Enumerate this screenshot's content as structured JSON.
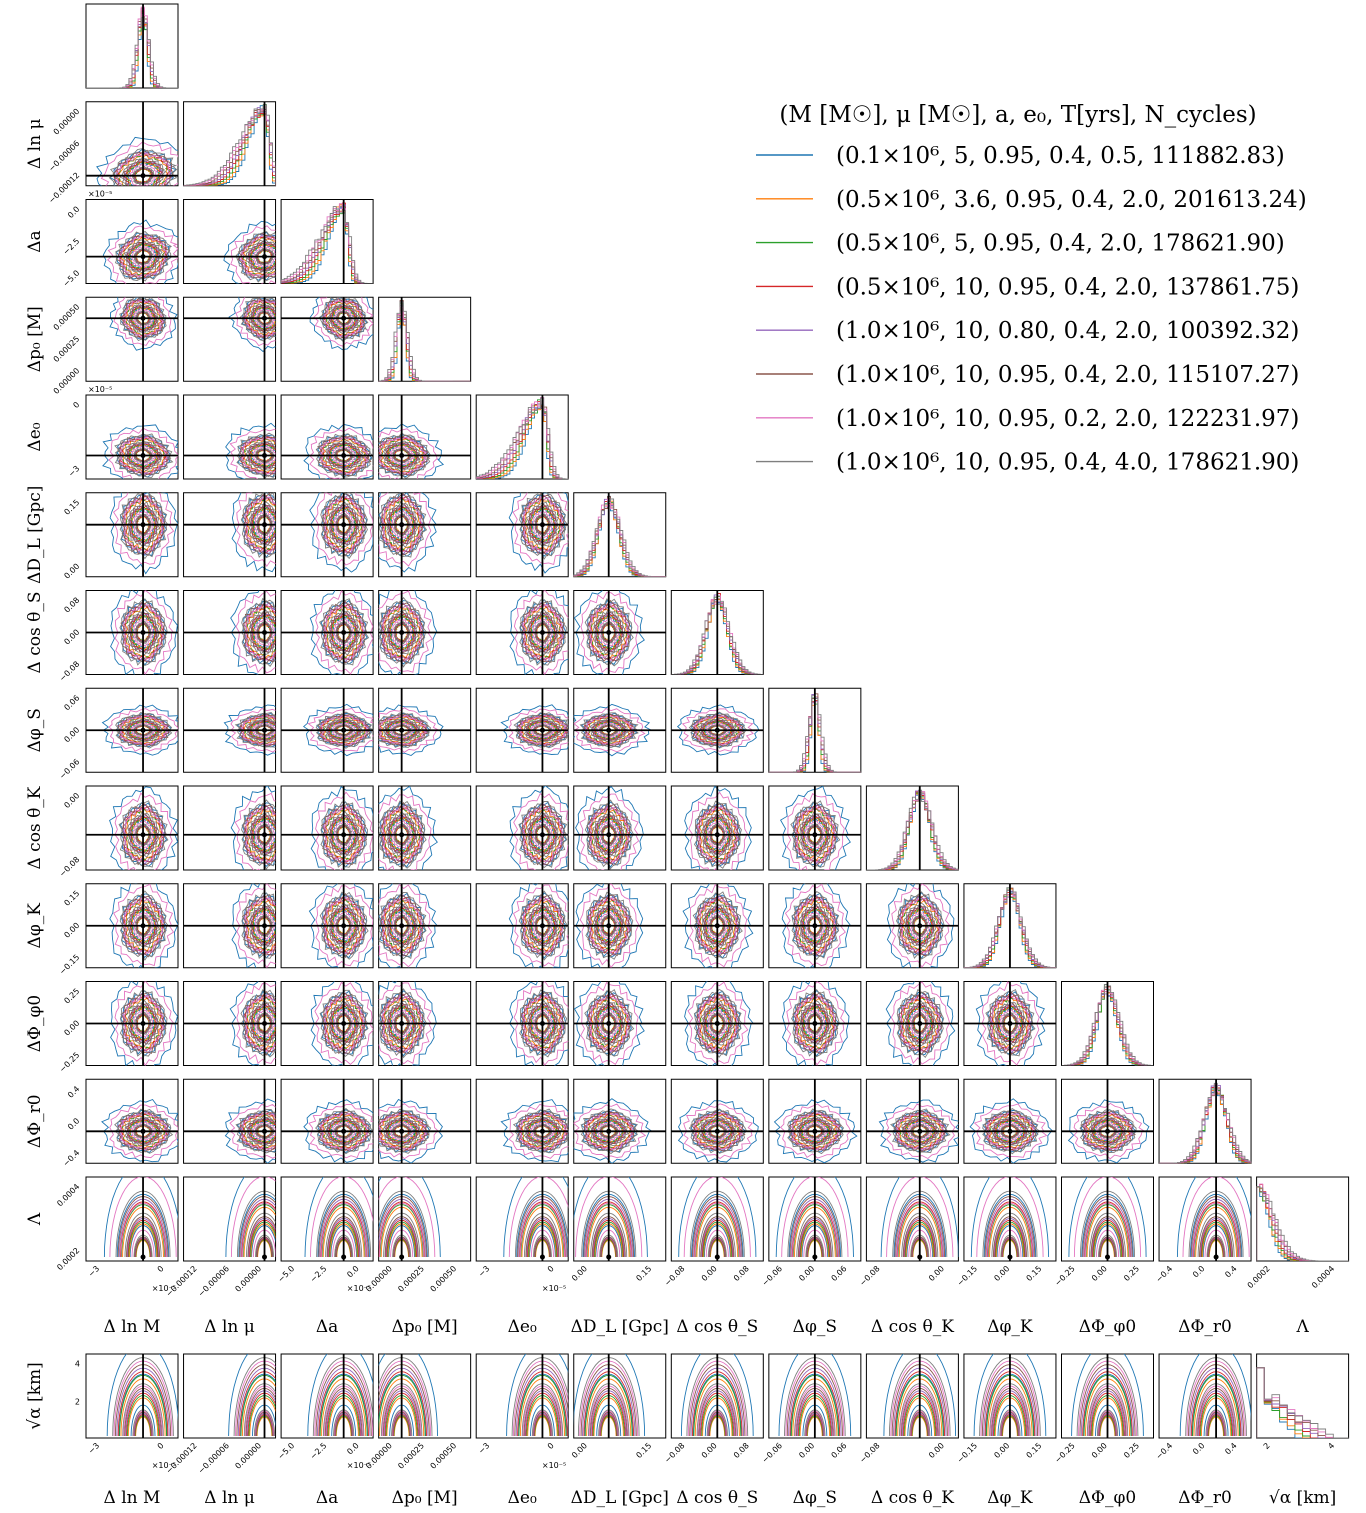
{
  "chart_data": {
    "type": "scatter",
    "subtype": "corner-plot",
    "parameters": [
      {
        "label": "Δ ln M",
        "ticks": [
          "−3",
          "0"
        ],
        "offset": "×10⁻⁵",
        "range": [
          -4,
          1
        ]
      },
      {
        "label": "Δ ln μ",
        "ticks": [
          "−0.00012",
          "−0.00006",
          "0.00000"
        ],
        "range": [
          -0.00015,
          1e-05
        ]
      },
      {
        "label": "Δa",
        "ticks": [
          "−5.0",
          "−2.5",
          "0.0"
        ],
        "offset": "×10⁻⁵",
        "range": [
          -5,
          1
        ]
      },
      {
        "label": "Δp₀ [M]",
        "ticks": [
          "0.00000",
          "0.00025",
          "0.00050"
        ],
        "range": [
          -0.0001,
          0.0006
        ]
      },
      {
        "label": "Δe₀",
        "ticks": [
          "−3",
          "0"
        ],
        "offset": "×10⁻⁵",
        "range": [
          -5,
          0.5
        ]
      },
      {
        "label": "ΔD_L [Gpc]",
        "ticks": [
          "0.00",
          "0.15"
        ],
        "range": [
          -0.1,
          0.2
        ]
      },
      {
        "label": "Δ cos θ_S",
        "ticks": [
          "−0.08",
          "0.00",
          "0.08"
        ],
        "range": [
          -0.1,
          0.1
        ]
      },
      {
        "label": "Δφ_S",
        "ticks": [
          "−0.06",
          "0.00",
          "0.06"
        ],
        "range": [
          -0.08,
          0.08
        ]
      },
      {
        "label": "Δ cos θ_K",
        "ticks": [
          "−0.08",
          "0.00"
        ],
        "range": [
          -0.1,
          0.08
        ]
      },
      {
        "label": "Δφ_K",
        "ticks": [
          "−0.15",
          "0.00",
          "0.15"
        ],
        "range": [
          -0.2,
          0.2
        ]
      },
      {
        "label": "ΔΦ_φ0",
        "ticks": [
          "−0.25",
          "0.00",
          "0.25"
        ],
        "range": [
          -0.3,
          0.3
        ]
      },
      {
        "label": "ΔΦ_r0",
        "ticks": [
          "−0.4",
          "0.0",
          "0.4"
        ],
        "range": [
          -0.6,
          0.5
        ]
      },
      {
        "label": "Λ",
        "ticks": [
          "0.0002",
          "0.0004"
        ],
        "range": [
          0,
          0.0005
        ]
      }
    ],
    "extra_row": {
      "label": "√α [km]",
      "yticks": [
        "2",
        "4"
      ],
      "xticks_last": [
        "2",
        "4"
      ],
      "range": [
        0,
        4.5
      ]
    },
    "y_tick_overrides": {
      "Δ ln μ": [
        "0.00000",
        "−0.00006",
        "−0.00012"
      ],
      "Δa": [
        "0.0",
        "−2.5",
        "−5.0"
      ],
      "Δp₀ [M]": [
        "0.00050",
        "0.00025",
        "0.00000"
      ],
      "Δe₀": [
        "0",
        "−3"
      ],
      "ΔD_L [Gpc]": [
        "0.15",
        "0.00"
      ],
      "Δ cos θ_S": [
        "0.08",
        "0.00",
        "−0.08"
      ],
      "Δφ_S": [
        "0.06",
        "0.00",
        "−0.06"
      ],
      "Δ cos θ_K": [
        "0.00",
        "−0.08"
      ],
      "Δφ_K": [
        "0.15",
        "0.00",
        "−0.15"
      ],
      "ΔΦ_φ0": [
        "0.25",
        "0.00",
        "−0.25"
      ],
      "ΔΦ_r0": [
        "0.4",
        "0.0",
        "−0.4"
      ],
      "Λ": [
        "0.0004",
        "0.0002"
      ]
    },
    "y_offsets": {
      "Δa": "×10⁻⁵",
      "Δe₀": "×10⁻⁵"
    },
    "legend": {
      "title": "(M [M☉], μ [M☉], a, e₀, T[yrs], N_cycles)",
      "placement": "top-right",
      "series": [
        {
          "label": "(0.1×10⁶,   5, 0.95, 0.4, 0.5, 111882.83)",
          "color": "#1f77b4"
        },
        {
          "label": "(0.5×10⁶, 3.6, 0.95, 0.4, 2.0, 201613.24)",
          "color": "#ff7f0e"
        },
        {
          "label": "(0.5×10⁶,   5, 0.95, 0.4, 2.0, 178621.90)",
          "color": "#2ca02c"
        },
        {
          "label": "(0.5×10⁶, 10, 0.95, 0.4, 2.0, 137861.75)",
          "color": "#d62728"
        },
        {
          "label": "(1.0×10⁶, 10, 0.80, 0.4, 2.0, 100392.32)",
          "color": "#9467bd"
        },
        {
          "label": "(1.0×10⁶, 10, 0.95, 0.4, 2.0, 115107.27)",
          "color": "#8c564b"
        },
        {
          "label": "(1.0×10⁶, 10, 0.95, 0.2, 2.0, 122231.97)",
          "color": "#e377c2"
        },
        {
          "label": "(1.0×10⁶, 10, 0.95, 0.4, 4.0, 178621.90)",
          "color": "#7f7f7f"
        }
      ]
    },
    "truth_values": [
      0,
      0,
      0,
      0,
      0,
      0,
      0,
      0,
      0,
      0,
      0,
      0,
      0
    ]
  }
}
